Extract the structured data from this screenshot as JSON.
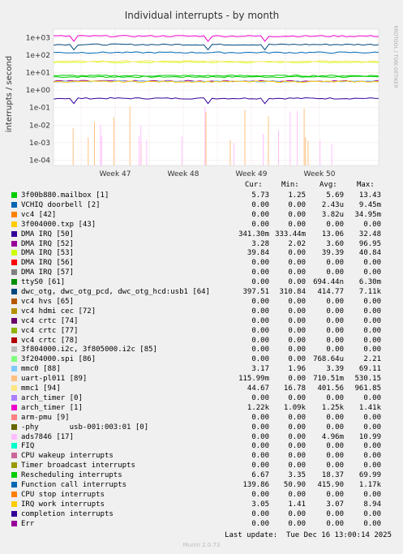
{
  "chart_data": {
    "type": "line",
    "title": "Individual interrupts - by month",
    "ylabel": "interrupts / second",
    "side_label": "RRDTOOL / TOBI OETIKER",
    "y_scale": "log",
    "ylim": [
      5e-05,
      3000
    ],
    "y_ticks": [
      "1e+03",
      "1e+02",
      "1e+01",
      "1e+00",
      "1e-01",
      "1e-02",
      "1e-03",
      "1e-04"
    ],
    "x_ticks": [
      "Week 47",
      "Week 48",
      "Week 49",
      "Week 50"
    ],
    "grid": true,
    "legend_headers": [
      "Cur:",
      "Min:",
      "Avg:",
      "Max:"
    ],
    "series": [
      {
        "name": "3f00b880.mailbox [1]",
        "color": "#00cc00",
        "cur": "5.73",
        "min": "1.25",
        "avg": "5.69",
        "max": "13.43",
        "level": 5.7
      },
      {
        "name": "VCHIQ doorbell [2]",
        "color": "#0066b3",
        "cur": "0.00",
        "min": "0.00",
        "avg": "2.43u",
        "max": "9.45m",
        "level": null
      },
      {
        "name": "vc4 [42]",
        "color": "#ff8000",
        "cur": "0.00",
        "min": "0.00",
        "avg": "3.82u",
        "max": "34.95m",
        "level": null
      },
      {
        "name": "3f004000.txp [43]",
        "color": "#ffcc00",
        "cur": "0.00",
        "min": "0.00",
        "avg": "0.00",
        "max": "0.00",
        "level": null
      },
      {
        "name": "DMA IRQ [50]",
        "color": "#330099",
        "cur": "341.30m",
        "min": "333.44m",
        "avg": "13.06",
        "max": "32.48",
        "level": 0.34
      },
      {
        "name": "DMA IRQ [52]",
        "color": "#990099",
        "cur": "3.28",
        "min": "2.02",
        "avg": "3.60",
        "max": "96.95",
        "level": 3.3
      },
      {
        "name": "DMA IRQ [53]",
        "color": "#ccff00",
        "cur": "39.84",
        "min": "0.00",
        "avg": "39.39",
        "max": "40.84",
        "level": 39.8
      },
      {
        "name": "DMA IRQ [56]",
        "color": "#ff0000",
        "cur": "0.00",
        "min": "0.00",
        "avg": "0.00",
        "max": "0.00",
        "level": null
      },
      {
        "name": "DMA IRQ [57]",
        "color": "#808080",
        "cur": "0.00",
        "min": "0.00",
        "avg": "0.00",
        "max": "0.00",
        "level": null
      },
      {
        "name": "ttyS0 [61]",
        "color": "#008f00",
        "cur": "0.00",
        "min": "0.00",
        "avg": "694.44n",
        "max": "6.30m",
        "level": null
      },
      {
        "name": "dwc_otg, dwc_otg_pcd, dwc_otg_hcd:usb1 [64]",
        "color": "#00487d",
        "cur": "397.51",
        "min": "310.84",
        "avg": "414.77",
        "max": "7.11k",
        "level": 400
      },
      {
        "name": "vc4 hvs [65]",
        "color": "#b35a00",
        "cur": "0.00",
        "min": "0.00",
        "avg": "0.00",
        "max": "0.00",
        "level": null
      },
      {
        "name": "vc4 hdmi cec [72]",
        "color": "#b38f00",
        "cur": "0.00",
        "min": "0.00",
        "avg": "0.00",
        "max": "0.00",
        "level": null
      },
      {
        "name": "vc4 crtc [74]",
        "color": "#6b006b",
        "cur": "0.00",
        "min": "0.00",
        "avg": "0.00",
        "max": "0.00",
        "level": null
      },
      {
        "name": "vc4 crtc [77]",
        "color": "#8fb300",
        "cur": "0.00",
        "min": "0.00",
        "avg": "0.00",
        "max": "0.00",
        "level": null
      },
      {
        "name": "vc4 crtc [78]",
        "color": "#b30000",
        "cur": "0.00",
        "min": "0.00",
        "avg": "0.00",
        "max": "0.00",
        "level": null
      },
      {
        "name": "3f804000.i2c, 3f805000.i2c [85]",
        "color": "#bebebe",
        "cur": "0.00",
        "min": "0.00",
        "avg": "0.00",
        "max": "0.00",
        "level": null
      },
      {
        "name": "3f204000.spi [86]",
        "color": "#80ff80",
        "cur": "0.00",
        "min": "0.00",
        "avg": "768.64u",
        "max": "2.21",
        "level": null
      },
      {
        "name": "mmc0 [88]",
        "color": "#80c9ff",
        "cur": "3.17",
        "min": "1.96",
        "avg": "3.39",
        "max": "69.11",
        "level": 3.17
      },
      {
        "name": "uart-pl011 [89]",
        "color": "#ffc080",
        "cur": "115.99m",
        "min": "0.00",
        "avg": "710.51m",
        "max": "530.15",
        "level": null
      },
      {
        "name": "mmc1 [94]",
        "color": "#ffe680",
        "cur": "44.67",
        "min": "16.78",
        "avg": "401.56",
        "max": "961.85",
        "level": 44.7
      },
      {
        "name": "arch_timer [0]",
        "color": "#aa80ff",
        "cur": "0.00",
        "min": "0.00",
        "avg": "0.00",
        "max": "0.00",
        "level": null
      },
      {
        "name": "arch_timer [1]",
        "color": "#ee00cc",
        "cur": "1.22k",
        "min": "1.09k",
        "avg": "1.25k",
        "max": "1.41k",
        "level": 1220
      },
      {
        "name": "arm-pmu [9]",
        "color": "#ff8080",
        "cur": "0.00",
        "min": "0.00",
        "avg": "0.00",
        "max": "0.00",
        "level": null
      },
      {
        "name": "-phy       usb-001:003:01 [0]",
        "color": "#666600",
        "cur": "0.00",
        "min": "0.00",
        "avg": "0.00",
        "max": "0.00",
        "level": null
      },
      {
        "name": "ads7846 [17]",
        "color": "#ffbfff",
        "cur": "0.00",
        "min": "0.00",
        "avg": "4.96m",
        "max": "10.99",
        "level": null
      },
      {
        "name": "FIQ",
        "color": "#00ffcc",
        "cur": "0.00",
        "min": "0.00",
        "avg": "0.00",
        "max": "0.00",
        "level": null
      },
      {
        "name": "CPU wakeup interrupts",
        "color": "#cc6699",
        "cur": "0.00",
        "min": "0.00",
        "avg": "0.00",
        "max": "0.00",
        "level": null
      },
      {
        "name": "Timer broadcast interrupts",
        "color": "#999900",
        "cur": "0.00",
        "min": "0.00",
        "avg": "0.00",
        "max": "0.00",
        "level": null
      },
      {
        "name": "Rescheduling interrupts",
        "color": "#00cc00",
        "cur": "6.67",
        "min": "3.35",
        "avg": "18.37",
        "max": "69.99",
        "level": 6.67
      },
      {
        "name": "Function call interrupts",
        "color": "#0066b3",
        "cur": "139.86",
        "min": "50.90",
        "avg": "415.90",
        "max": "1.17k",
        "level": 140
      },
      {
        "name": "CPU stop interrupts",
        "color": "#ff8000",
        "cur": "0.00",
        "min": "0.00",
        "avg": "0.00",
        "max": "0.00",
        "level": null
      },
      {
        "name": "IRQ work interrupts",
        "color": "#ffcc00",
        "cur": "3.05",
        "min": "1.41",
        "avg": "3.07",
        "max": "8.94",
        "level": 3.05
      },
      {
        "name": "completion interrupts",
        "color": "#330099",
        "cur": "0.00",
        "min": "0.00",
        "avg": "0.00",
        "max": "0.00",
        "level": null
      },
      {
        "name": "Err",
        "color": "#990099",
        "cur": "0.00",
        "min": "0.00",
        "avg": "0.00",
        "max": "0.00",
        "level": null
      }
    ]
  },
  "footer": {
    "last_update": "Last update:  Tue Dec 16 13:00:14 2025",
    "version": "Munin 2.0.73"
  }
}
